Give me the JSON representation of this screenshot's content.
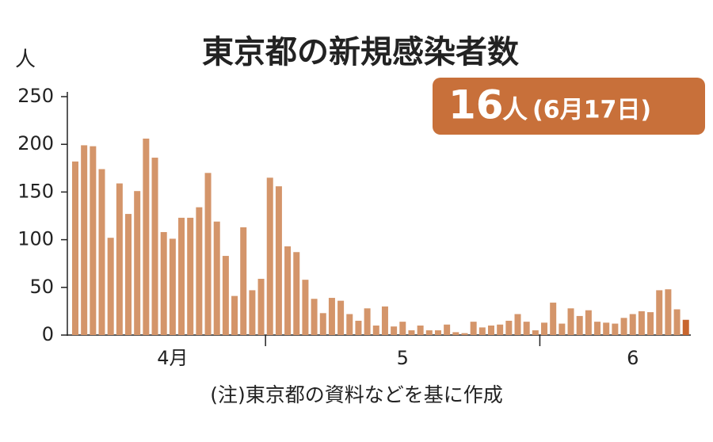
{
  "chart_data": {
    "type": "bar",
    "title": "東京都の新規感染者数",
    "y_unit": "人",
    "badge": [
      "16",
      "人",
      "(6月17日)"
    ],
    "note": "(注)東京都の資料などを基に作成",
    "color": "#d4956a",
    "highlight_color": "#c8652e",
    "ylim": [
      0,
      250
    ],
    "yticks": [
      0,
      50,
      100,
      150,
      200,
      250
    ],
    "grid": false,
    "categories": [
      null,
      null,
      null,
      null,
      null,
      null,
      null,
      null,
      null,
      null,
      null,
      "4月",
      null,
      null,
      null,
      null,
      null,
      null,
      null,
      null,
      null,
      null,
      null,
      null,
      null,
      null,
      null,
      null,
      null,
      null,
      null,
      null,
      null,
      null,
      null,
      null,
      null,
      "5",
      null,
      null,
      null,
      null,
      null,
      null,
      null,
      null,
      null,
      null,
      null,
      null,
      null,
      null,
      null,
      null,
      null,
      null,
      null,
      null,
      null,
      null,
      null,
      null,
      null,
      "6",
      null,
      null,
      null,
      null,
      null,
      null
    ],
    "values": [
      182,
      199,
      198,
      174,
      102,
      159,
      127,
      151,
      206,
      186,
      108,
      101,
      123,
      123,
      134,
      170,
      119,
      83,
      41,
      113,
      47,
      59,
      165,
      156,
      93,
      87,
      58,
      38,
      23,
      39,
      36,
      22,
      15,
      28,
      10,
      30,
      9,
      14,
      5,
      10,
      5,
      5,
      11,
      3,
      2,
      14,
      8,
      10,
      11,
      15,
      22,
      14,
      5,
      13,
      34,
      12,
      28,
      20,
      26,
      14,
      13,
      12,
      18,
      22,
      25,
      24,
      47,
      48,
      27,
      16
    ]
  }
}
